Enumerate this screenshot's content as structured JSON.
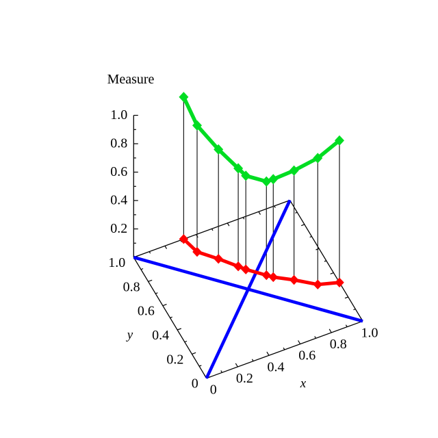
{
  "figure": {
    "title": "Measure",
    "x_axis_label": "x",
    "y_axis_label": "y",
    "background": "#ffffff"
  },
  "axes": {
    "x": {
      "label": "x",
      "range": [
        0,
        1
      ],
      "minor_tick_step": 0.1,
      "major_ticks": [
        {
          "value": 0,
          "label": "0"
        },
        {
          "value": 0.2,
          "label": "0.2"
        },
        {
          "value": 0.4,
          "label": "0.4"
        },
        {
          "value": 0.6,
          "label": "0.6"
        },
        {
          "value": 0.8,
          "label": "0.8"
        },
        {
          "value": 1,
          "label": "1.0"
        }
      ]
    },
    "y": {
      "label": "y",
      "range": [
        0,
        1
      ],
      "minor_tick_step": 0.1,
      "major_ticks": [
        {
          "value": 0,
          "label": "0"
        },
        {
          "value": 0.2,
          "label": "0.2"
        },
        {
          "value": 0.4,
          "label": "0.4"
        },
        {
          "value": 0.6,
          "label": "0.6"
        },
        {
          "value": 0.8,
          "label": "0.8"
        },
        {
          "value": 1,
          "label": "1.0"
        }
      ]
    },
    "z": {
      "label": "Measure",
      "range": [
        0,
        1
      ],
      "minor_tick_step": 0.1,
      "major_ticks": [
        {
          "value": 0.2,
          "label": "0.2"
        },
        {
          "value": 0.4,
          "label": "0.4"
        },
        {
          "value": 0.6,
          "label": "0.6"
        },
        {
          "value": 0.8,
          "label": "0.8"
        },
        {
          "value": 1,
          "label": "1.0"
        }
      ]
    }
  },
  "chart_data": {
    "type": "line",
    "projection": "3d",
    "title": "Measure",
    "xlabel": "x",
    "ylabel": "y",
    "zlabel": "Measure",
    "xlim": [
      0,
      1
    ],
    "ylim": [
      0,
      1
    ],
    "zlim": [
      0,
      1
    ],
    "grid": false,
    "legend": null,
    "path_points": [
      {
        "x": 0.32,
        "y": 1.0,
        "measure": 1.0
      },
      {
        "x": 0.35,
        "y": 0.88,
        "measure": 0.89
      },
      {
        "x": 0.44,
        "y": 0.78,
        "measure": 0.77
      },
      {
        "x": 0.52,
        "y": 0.68,
        "measure": 0.69
      },
      {
        "x": 0.55,
        "y": 0.64,
        "measure": 0.66
      },
      {
        "x": 0.64,
        "y": 0.55,
        "measure": 0.66
      },
      {
        "x": 0.67,
        "y": 0.52,
        "measure": 0.69
      },
      {
        "x": 0.77,
        "y": 0.45,
        "measure": 0.77
      },
      {
        "x": 0.88,
        "y": 0.36,
        "measure": 0.89
      },
      {
        "x": 1.0,
        "y": 0.32,
        "measure": 1.0
      }
    ],
    "series": [
      {
        "name": "measure-curve",
        "color": "#00dd22",
        "marker": "diamond",
        "line_width": 5.5,
        "z": "measure"
      },
      {
        "name": "base-path",
        "color": "#ff0000",
        "marker": "diamond",
        "line_width": 5.0,
        "z": 0
      }
    ],
    "drop_lines": {
      "color": "#1c1c1c",
      "width": 1.2
    },
    "reference_lines": [
      {
        "name": "base-diagonal",
        "color": "#0000ff",
        "width": 4.6,
        "from": [
          0,
          0
        ],
        "to": [
          1,
          1
        ]
      },
      {
        "name": "base-anti-diagonal",
        "color": "#0000ff",
        "width": 4.6,
        "from": [
          0,
          1
        ],
        "to": [
          1,
          0
        ]
      }
    ]
  }
}
